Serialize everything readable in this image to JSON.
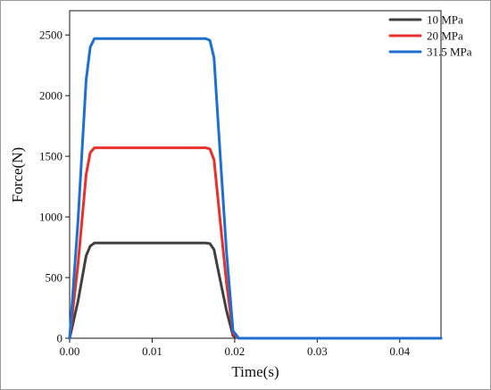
{
  "chart_data": {
    "type": "line",
    "title": "",
    "xlabel": "Time(s)",
    "ylabel": "Force(N)",
    "xlim": [
      0,
      0.045
    ],
    "ylim": [
      0,
      2700
    ],
    "x_ticks": [
      "0.00",
      "0.01",
      "0.02",
      "0.03",
      "0.04"
    ],
    "y_ticks": [
      "0",
      "500",
      "1000",
      "1500",
      "2000",
      "2500"
    ],
    "grid": false,
    "legend_position": "top-right",
    "series": [
      {
        "name": "10 MPa",
        "color": "#404040",
        "x": [
          0,
          0.001,
          0.002,
          0.0025,
          0.003,
          0.004,
          0.01,
          0.0165,
          0.017,
          0.0175,
          0.018,
          0.019,
          0.0198,
          0.0205,
          0.045
        ],
        "y": [
          0,
          300,
          680,
          760,
          785,
          785,
          785,
          785,
          780,
          730,
          560,
          230,
          20,
          0,
          0
        ]
      },
      {
        "name": "20 MPa",
        "color": "#e8302d",
        "x": [
          0,
          0.001,
          0.002,
          0.0025,
          0.003,
          0.004,
          0.01,
          0.0165,
          0.017,
          0.0175,
          0.018,
          0.019,
          0.0198,
          0.0205,
          0.045
        ],
        "y": [
          0,
          600,
          1350,
          1530,
          1570,
          1570,
          1570,
          1570,
          1560,
          1470,
          1130,
          460,
          40,
          0,
          0
        ]
      },
      {
        "name": "31.5 MPa",
        "color": "#1f6fd1",
        "x": [
          0,
          0.001,
          0.002,
          0.0025,
          0.003,
          0.004,
          0.01,
          0.0165,
          0.017,
          0.0175,
          0.018,
          0.019,
          0.0198,
          0.0205,
          0.045
        ],
        "y": [
          0,
          950,
          2130,
          2400,
          2470,
          2470,
          2470,
          2470,
          2455,
          2310,
          1770,
          720,
          60,
          0,
          0
        ]
      }
    ]
  }
}
